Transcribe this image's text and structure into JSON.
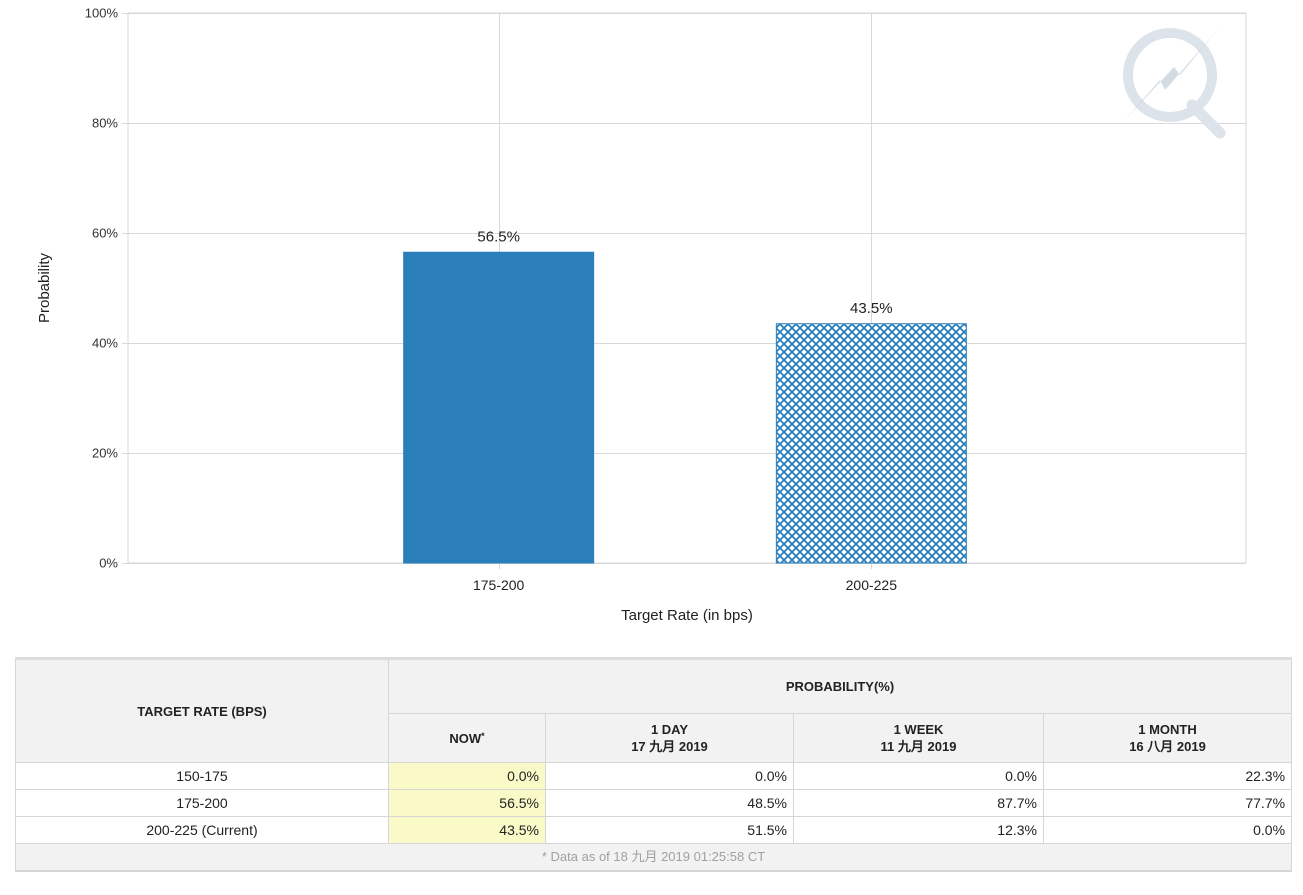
{
  "chart_data": {
    "type": "bar",
    "categories": [
      "175-200",
      "200-225"
    ],
    "values": [
      56.5,
      43.5
    ],
    "data_labels": [
      "56.5%",
      "43.5%"
    ],
    "bar_styles": [
      "solid",
      "crosshatch"
    ],
    "bar_color": "#2a7fba",
    "xlabel": "Target Rate (in bps)",
    "ylabel": "Probability",
    "ylim": [
      0,
      100
    ],
    "yticks": [
      0,
      20,
      40,
      60,
      80,
      100
    ],
    "ytick_labels": [
      "0%",
      "20%",
      "40%",
      "60%",
      "80%",
      "100%"
    ],
    "grid": true,
    "watermark": "q-logo"
  },
  "table": {
    "header_rate": "TARGET RATE (BPS)",
    "header_probability": "PROBABILITY(%)",
    "columns": [
      {
        "label": "NOW",
        "date": "",
        "sup": "*"
      },
      {
        "label": "1 DAY",
        "date": "17 九月 2019",
        "sup": ""
      },
      {
        "label": "1 WEEK",
        "date": "11 九月 2019",
        "sup": ""
      },
      {
        "label": "1 MONTH",
        "date": "16 八月 2019",
        "sup": ""
      }
    ],
    "rows": [
      {
        "rate": "150-175",
        "values": [
          "0.0%",
          "0.0%",
          "0.0%",
          "22.3%"
        ]
      },
      {
        "rate": "175-200",
        "values": [
          "56.5%",
          "48.5%",
          "87.7%",
          "77.7%"
        ]
      },
      {
        "rate": "200-225 (Current)",
        "values": [
          "43.5%",
          "51.5%",
          "12.3%",
          "0.0%"
        ]
      }
    ],
    "footnote": "* Data as of 18 九月 2019 01:25:58 CT"
  }
}
